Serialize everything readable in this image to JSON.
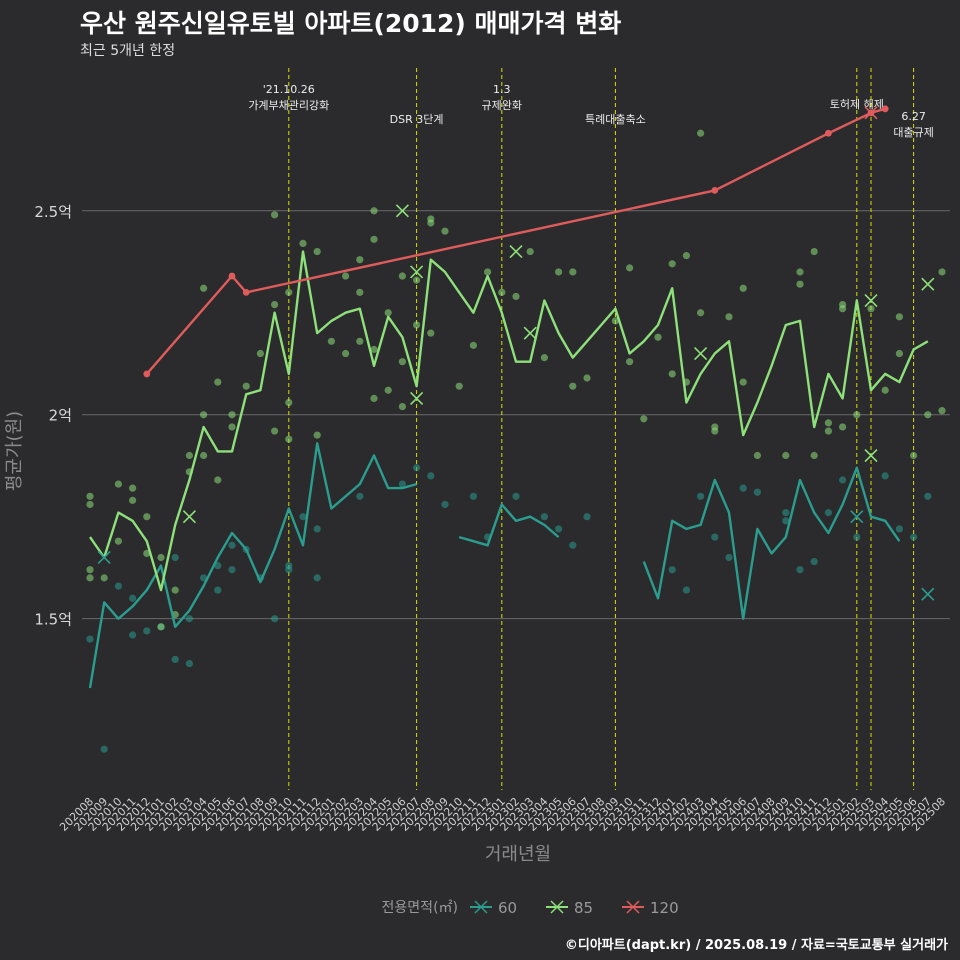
{
  "title": "우산 원주신일유토빌 아파트(2012) 매매가격 변화",
  "subtitle": "최근 5개년 한정",
  "caption": "©디아파트(dapt.kr) / 2025.08.19 / 자료=국토교통부 실거래가",
  "chart_data": {
    "type": "line",
    "xlabel": "거래년월",
    "ylabel": "평균가(원)",
    "ylim": [
      1.08,
      2.85
    ],
    "y_unit": "억",
    "yticks": [
      1.5,
      2.0,
      2.5
    ],
    "ytick_labels": [
      "1.5억",
      "2억",
      "2.5억"
    ],
    "categories": [
      "202008",
      "202009",
      "202010",
      "202011",
      "202012",
      "202101",
      "202102",
      "202103",
      "202104",
      "202105",
      "202106",
      "202107",
      "202108",
      "202109",
      "202110",
      "202111",
      "202112",
      "202201",
      "202202",
      "202203",
      "202204",
      "202205",
      "202206",
      "202207",
      "202208",
      "202209",
      "202210",
      "202211",
      "202212",
      "202301",
      "202302",
      "202303",
      "202304",
      "202305",
      "202306",
      "202307",
      "202308",
      "202309",
      "202310",
      "202311",
      "202312",
      "202401",
      "202402",
      "202403",
      "202404",
      "202405",
      "202406",
      "202407",
      "202408",
      "202409",
      "202410",
      "202411",
      "202412",
      "202501",
      "202502",
      "202503",
      "202504",
      "202505",
      "202506",
      "202507",
      "202508"
    ],
    "legend_title": "전용면적(㎡)",
    "legend_position": "bottom",
    "grid": true,
    "series": [
      {
        "name": "60",
        "color": "#2a9d8f",
        "values": [
          1.33,
          1.54,
          1.5,
          1.53,
          1.57,
          1.63,
          1.48,
          1.52,
          1.58,
          1.65,
          1.71,
          1.67,
          1.59,
          1.67,
          1.77,
          1.68,
          1.93,
          1.77,
          1.8,
          1.83,
          1.9,
          1.82,
          1.82,
          1.83,
          null,
          null,
          1.7,
          1.69,
          1.68,
          1.78,
          1.74,
          1.75,
          1.73,
          1.7,
          null,
          null,
          1.73,
          null,
          null,
          1.64,
          1.55,
          1.74,
          1.72,
          1.73,
          1.84,
          1.76,
          1.5,
          1.72,
          1.66,
          1.7,
          1.84,
          1.76,
          1.71,
          1.78,
          1.87,
          1.75,
          1.74,
          1.69,
          null,
          null,
          null
        ],
        "crosses": [
          [
            1,
            1.65
          ],
          [
            54,
            1.75
          ],
          [
            59,
            1.56
          ]
        ]
      },
      {
        "name": "85",
        "color": "#8ee07a",
        "values": [
          1.7,
          1.65,
          1.76,
          1.74,
          1.69,
          1.57,
          1.73,
          1.84,
          1.97,
          1.91,
          1.91,
          2.05,
          2.06,
          2.25,
          2.1,
          2.4,
          2.2,
          2.23,
          2.25,
          2.26,
          2.12,
          2.24,
          2.19,
          2.07,
          2.38,
          2.35,
          2.3,
          2.25,
          2.34,
          2.25,
          2.13,
          2.13,
          2.28,
          2.2,
          2.14,
          2.18,
          2.22,
          2.26,
          2.15,
          2.18,
          2.22,
          2.31,
          2.03,
          2.1,
          2.15,
          2.18,
          1.95,
          2.03,
          2.12,
          2.22,
          2.23,
          1.97,
          2.1,
          2.04,
          2.28,
          2.06,
          2.1,
          2.08,
          2.16,
          2.18,
          null
        ],
        "crosses": [
          [
            7,
            1.75
          ],
          [
            22,
            2.5
          ],
          [
            23,
            2.35
          ],
          [
            23,
            2.04
          ],
          [
            30,
            2.4
          ],
          [
            31,
            2.2
          ],
          [
            43,
            2.15
          ],
          [
            55,
            2.28
          ],
          [
            55,
            1.9
          ],
          [
            59,
            2.32
          ]
        ]
      },
      {
        "name": "120",
        "color": "#e05c5c",
        "points": [
          [
            4,
            2.1
          ],
          [
            10,
            2.34
          ],
          [
            11,
            2.3
          ],
          [
            44,
            2.55
          ],
          [
            52,
            2.69
          ],
          [
            55,
            2.74
          ],
          [
            56,
            2.75
          ]
        ],
        "crosses": [
          [
            55,
            2.74
          ]
        ]
      }
    ],
    "scatter": [
      {
        "series": "60",
        "points": [
          [
            0,
            1.45
          ],
          [
            1,
            1.18
          ],
          [
            2,
            1.58
          ],
          [
            3,
            1.55
          ],
          [
            3,
            1.46
          ],
          [
            4,
            1.47
          ],
          [
            5,
            1.48
          ],
          [
            6,
            1.65
          ],
          [
            6,
            1.4
          ],
          [
            7,
            1.39
          ],
          [
            7,
            1.5
          ],
          [
            8,
            1.6
          ],
          [
            9,
            1.63
          ],
          [
            9,
            1.57
          ],
          [
            10,
            1.68
          ],
          [
            10,
            1.62
          ],
          [
            11,
            1.67
          ],
          [
            12,
            1.6
          ],
          [
            13,
            1.5
          ],
          [
            14,
            1.62
          ],
          [
            14,
            1.63
          ],
          [
            15,
            1.75
          ],
          [
            16,
            1.6
          ],
          [
            16,
            1.72
          ],
          [
            19,
            1.8
          ],
          [
            22,
            1.83
          ],
          [
            23,
            1.87
          ],
          [
            24,
            1.85
          ],
          [
            25,
            1.78
          ],
          [
            27,
            1.8
          ],
          [
            28,
            1.7
          ],
          [
            30,
            1.8
          ],
          [
            32,
            1.75
          ],
          [
            33,
            1.72
          ],
          [
            34,
            1.68
          ],
          [
            35,
            1.75
          ],
          [
            41,
            1.62
          ],
          [
            42,
            1.57
          ],
          [
            43,
            1.8
          ],
          [
            44,
            1.7
          ],
          [
            45,
            1.65
          ],
          [
            46,
            1.82
          ],
          [
            47,
            1.81
          ],
          [
            49,
            1.76
          ],
          [
            49,
            1.74
          ],
          [
            50,
            1.62
          ],
          [
            51,
            1.64
          ],
          [
            52,
            1.76
          ],
          [
            53,
            1.84
          ],
          [
            54,
            1.7
          ],
          [
            56,
            1.85
          ],
          [
            57,
            1.72
          ],
          [
            58,
            1.7
          ],
          [
            59,
            1.8
          ]
        ]
      },
      {
        "series": "85",
        "points": [
          [
            0,
            1.8
          ],
          [
            0,
            1.78
          ],
          [
            0,
            1.62
          ],
          [
            0,
            1.6
          ],
          [
            1,
            1.6
          ],
          [
            2,
            1.83
          ],
          [
            2,
            1.69
          ],
          [
            3,
            1.82
          ],
          [
            3,
            1.79
          ],
          [
            4,
            1.75
          ],
          [
            4,
            1.66
          ],
          [
            5,
            1.65
          ],
          [
            5,
            1.48
          ],
          [
            6,
            1.57
          ],
          [
            6,
            1.51
          ],
          [
            7,
            1.9
          ],
          [
            7,
            1.86
          ],
          [
            8,
            2.31
          ],
          [
            8,
            2.0
          ],
          [
            8,
            1.9
          ],
          [
            9,
            2.08
          ],
          [
            9,
            1.84
          ],
          [
            10,
            2.0
          ],
          [
            10,
            1.97
          ],
          [
            11,
            2.07
          ],
          [
            12,
            2.15
          ],
          [
            13,
            2.49
          ],
          [
            13,
            2.27
          ],
          [
            13,
            1.96
          ],
          [
            14,
            2.3
          ],
          [
            14,
            2.03
          ],
          [
            14,
            1.94
          ],
          [
            15,
            2.42
          ],
          [
            16,
            2.4
          ],
          [
            16,
            1.95
          ],
          [
            17,
            2.18
          ],
          [
            18,
            2.34
          ],
          [
            18,
            2.15
          ],
          [
            19,
            2.38
          ],
          [
            19,
            2.3
          ],
          [
            19,
            2.18
          ],
          [
            20,
            2.5
          ],
          [
            20,
            2.43
          ],
          [
            20,
            2.16
          ],
          [
            20,
            2.04
          ],
          [
            21,
            2.25
          ],
          [
            21,
            2.06
          ],
          [
            22,
            2.34
          ],
          [
            22,
            2.13
          ],
          [
            22,
            2.02
          ],
          [
            23,
            2.33
          ],
          [
            23,
            2.22
          ],
          [
            24,
            2.48
          ],
          [
            24,
            2.47
          ],
          [
            24,
            2.2
          ],
          [
            25,
            2.45
          ],
          [
            26,
            2.07
          ],
          [
            27,
            2.17
          ],
          [
            28,
            2.35
          ],
          [
            29,
            2.3
          ],
          [
            30,
            2.29
          ],
          [
            31,
            2.4
          ],
          [
            32,
            2.14
          ],
          [
            33,
            2.35
          ],
          [
            34,
            2.35
          ],
          [
            34,
            2.07
          ],
          [
            35,
            2.09
          ],
          [
            37,
            2.23
          ],
          [
            38,
            2.36
          ],
          [
            38,
            2.13
          ],
          [
            39,
            1.99
          ],
          [
            40,
            2.19
          ],
          [
            41,
            2.37
          ],
          [
            41,
            2.1
          ],
          [
            42,
            2.39
          ],
          [
            42,
            2.08
          ],
          [
            43,
            2.69
          ],
          [
            43,
            2.25
          ],
          [
            44,
            1.97
          ],
          [
            44,
            1.96
          ],
          [
            45,
            2.24
          ],
          [
            46,
            2.31
          ],
          [
            46,
            2.08
          ],
          [
            47,
            1.9
          ],
          [
            49,
            1.9
          ],
          [
            50,
            2.35
          ],
          [
            50,
            2.32
          ],
          [
            51,
            2.4
          ],
          [
            51,
            1.9
          ],
          [
            52,
            1.98
          ],
          [
            52,
            1.96
          ],
          [
            53,
            2.27
          ],
          [
            53,
            2.26
          ],
          [
            53,
            1.97
          ],
          [
            54,
            2.0
          ],
          [
            55,
            2.26
          ],
          [
            56,
            2.06
          ],
          [
            57,
            2.24
          ],
          [
            57,
            2.15
          ],
          [
            58,
            1.9
          ],
          [
            59,
            2.0
          ],
          [
            60,
            2.35
          ],
          [
            60,
            2.01
          ]
        ]
      }
    ],
    "events": [
      {
        "at": 14,
        "label_lines": [
          "'21.10.26",
          "가계부채관리강화"
        ],
        "row": 0
      },
      {
        "at": 23,
        "label_lines": [
          "DSR 3단계"
        ],
        "row": 2
      },
      {
        "at": 29,
        "label_lines": [
          "1.3",
          "규제완화"
        ],
        "row": 0
      },
      {
        "at": 37,
        "label_lines": [
          "특례대출축소"
        ],
        "row": 2
      },
      {
        "at": 54,
        "label_lines": [
          "토허제 해제"
        ],
        "row": 1
      },
      {
        "at": 55,
        "label_lines": [],
        "row": 1
      },
      {
        "at": 58,
        "label_lines": [
          "6.27",
          "대출규제"
        ],
        "row": 1.8
      }
    ]
  }
}
